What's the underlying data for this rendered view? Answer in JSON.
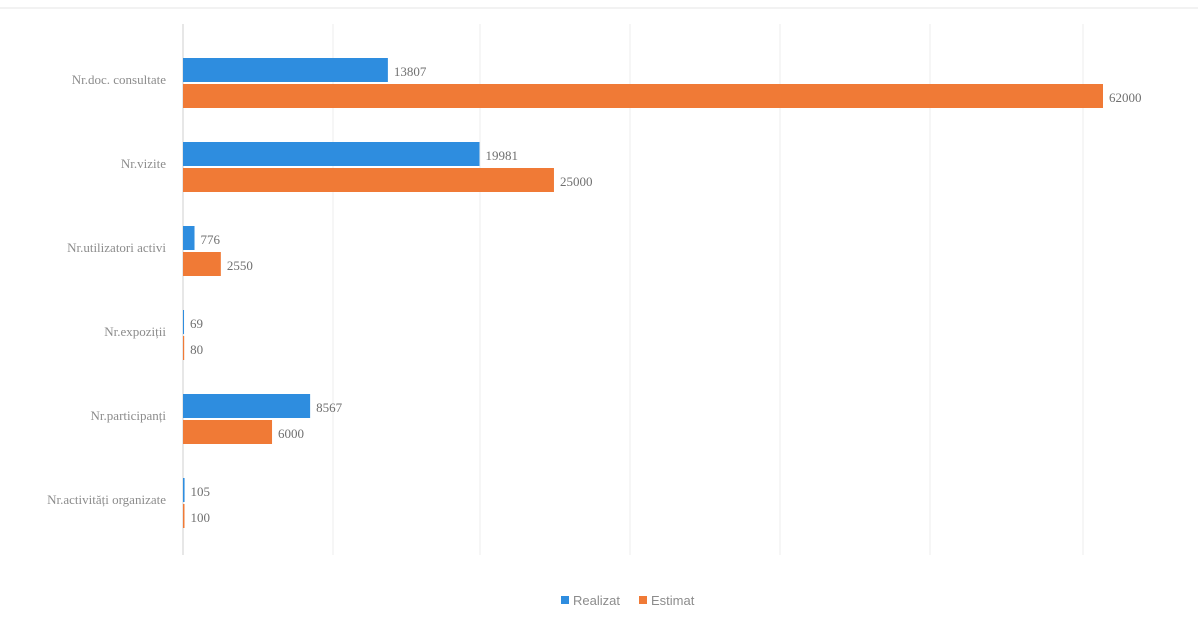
{
  "chart_data": {
    "type": "bar",
    "orientation": "horizontal",
    "categories": [
      "Nr.doc. consultate",
      "Nr.vizite",
      "Nr.utilizatori activi",
      "Nr.expoziții",
      "Nr.participanți",
      "Nr.activități organizate"
    ],
    "series": [
      {
        "name": "Realizat",
        "color": "#2e8ddf",
        "values": [
          13807,
          19981,
          776,
          69,
          8567,
          105
        ],
        "labels": [
          "13807",
          "19981",
          "776",
          "69",
          "8567",
          "105"
        ]
      },
      {
        "name": "Estimat",
        "color": "#f07a36",
        "values": [
          62000,
          25000,
          2550,
          80,
          6000,
          100
        ],
        "labels": [
          "62000",
          "25000",
          "2550",
          "80",
          "6000",
          "100"
        ]
      }
    ],
    "xlim": [
      0,
      62000
    ],
    "grid": true,
    "legend_position": "bottom"
  }
}
